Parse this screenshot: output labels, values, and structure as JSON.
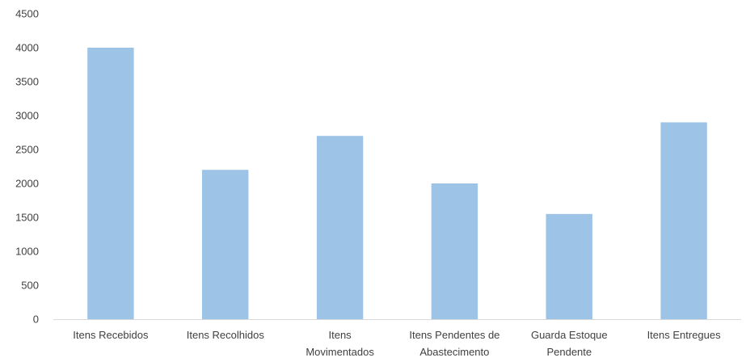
{
  "chart_data": {
    "type": "bar",
    "categories": [
      "Itens Recebidos",
      "Itens Recolhidos",
      "Itens Movimentados",
      "Itens Pendentes de Abastecimento",
      "Guarda Estoque Pendente",
      "Itens Entregues"
    ],
    "category_lines": [
      [
        "Itens Recebidos"
      ],
      [
        "Itens Recolhidos"
      ],
      [
        "Itens",
        "Movimentados"
      ],
      [
        "Itens Pendentes de",
        "Abastecimento"
      ],
      [
        "Guarda Estoque",
        "Pendente"
      ],
      [
        "Itens Entregues"
      ]
    ],
    "values": [
      4000,
      2200,
      2700,
      2000,
      1550,
      2900
    ],
    "title": "",
    "xlabel": "",
    "ylabel": "",
    "ylim": [
      0,
      4500
    ],
    "yticks": [
      0,
      500,
      1000,
      1500,
      2000,
      2500,
      3000,
      3500,
      4000,
      4500
    ],
    "grid": false,
    "legend": "none",
    "bar_color": "#9dc3e6",
    "axis_color": "#d9d9d9",
    "text_color": "#404040"
  }
}
